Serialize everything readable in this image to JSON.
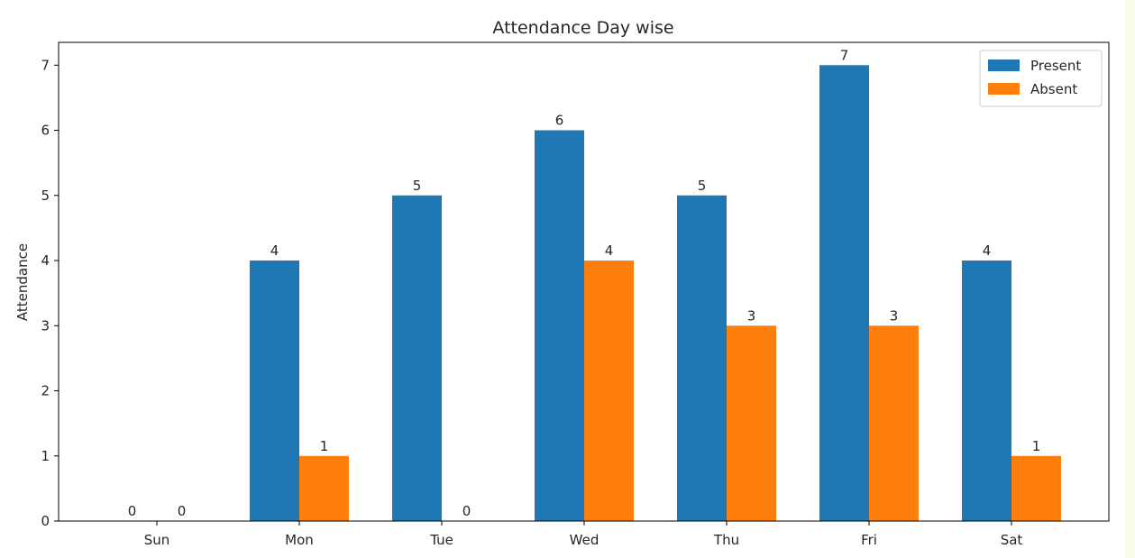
{
  "chart_data": {
    "type": "bar",
    "title": "Attendance Day wise",
    "xlabel": "",
    "ylabel": "Attendance",
    "categories": [
      "Sun",
      "Mon",
      "Tue",
      "Wed",
      "Thu",
      "Fri",
      "Sat"
    ],
    "series": [
      {
        "name": "Present",
        "color": "#1f77b4",
        "values": [
          0,
          4,
          5,
          6,
          5,
          7,
          4
        ]
      },
      {
        "name": "Absent",
        "color": "#ff7f0e",
        "values": [
          0,
          1,
          0,
          4,
          3,
          3,
          1
        ]
      }
    ],
    "ylim": [
      0,
      7.35
    ],
    "yticks": [
      0,
      1,
      2,
      3,
      4,
      5,
      6,
      7
    ],
    "grid": false,
    "legend_position": "top-right"
  }
}
